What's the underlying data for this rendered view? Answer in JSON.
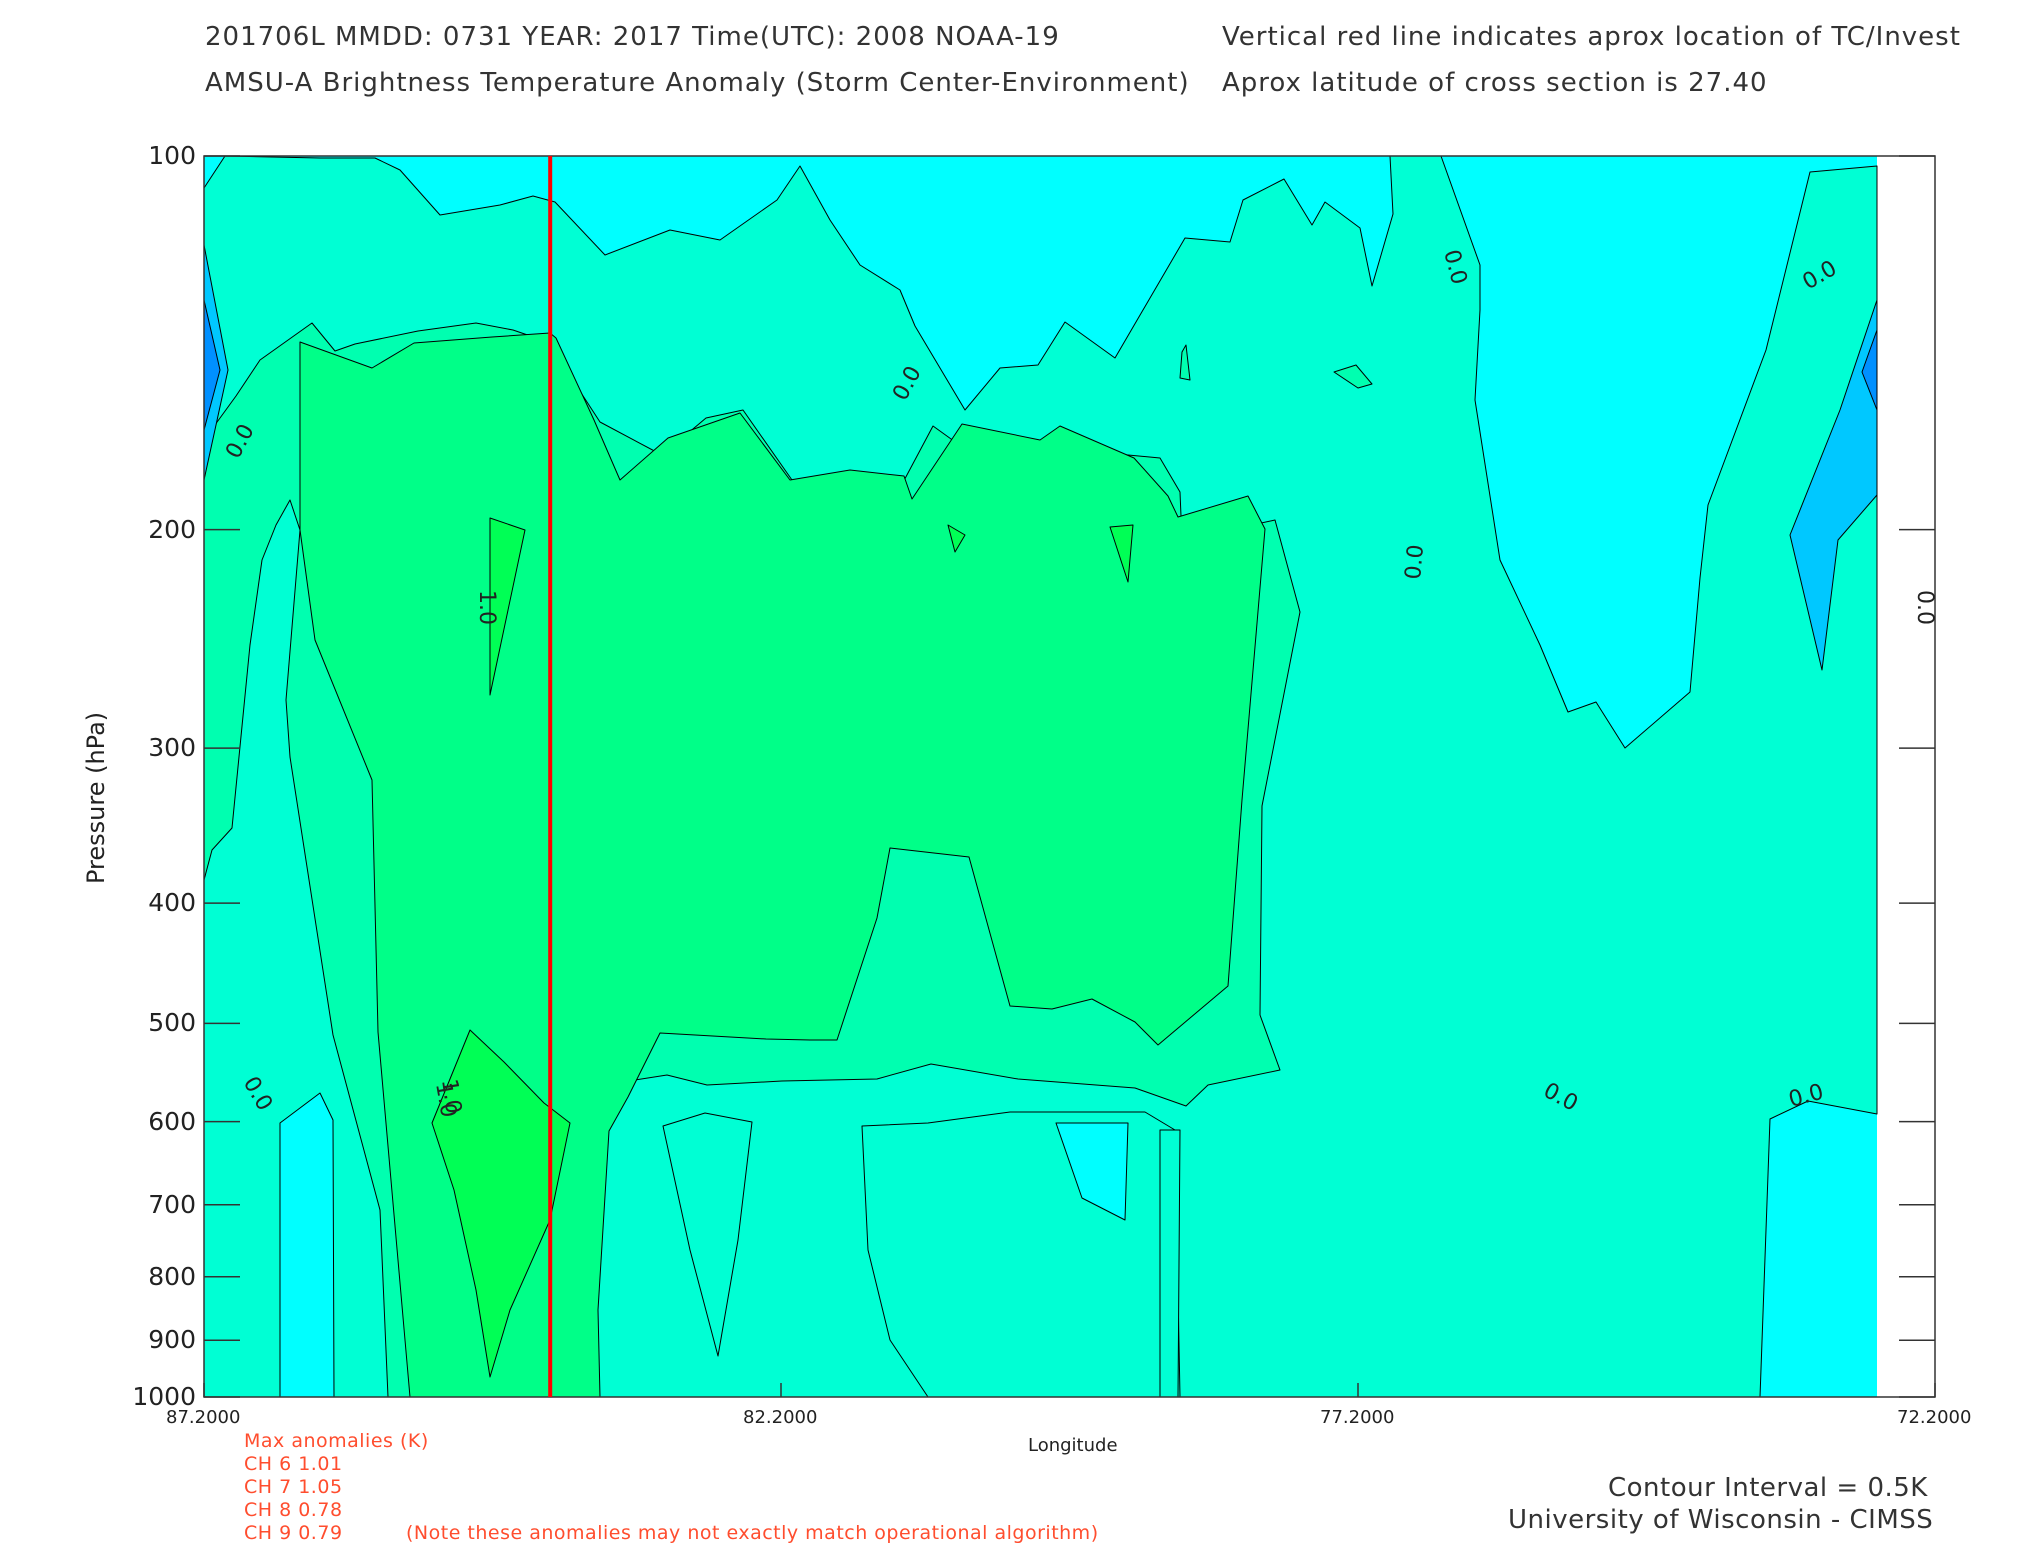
{
  "header": {
    "line1_left": "201706L  MMDD: 0731 YEAR: 2017 Time(UTC): 2008 NOAA-19",
    "line2_left": "AMSU-A Brightness Temperature Anomaly (Storm Center-Environment)",
    "line1_right": "Vertical red line indicates aprox location of TC/Invest",
    "line2_right": "Aprox latitude of cross section is 27.40"
  },
  "anomalies": {
    "title": "Max anomalies (K)",
    "rows": [
      "CH 6  1.01",
      "CH 7  1.05",
      "CH 8  0.78",
      "CH 9  0.79"
    ],
    "note": "(Note these anomalies may not exactly match operational algorithm)"
  },
  "footer": {
    "contour_interval": "Contour Interval = 0.5K",
    "credit": "University of Wisconsin - CIMSS"
  },
  "colors": {
    "cyan": "#00ffff",
    "light_teal": "#00ffd4",
    "aqua_green": "#00ffb0",
    "green": "#00ff88",
    "bright_green": "#00ff55",
    "blue_1": "#00c8ff",
    "blue_2": "#0090ff",
    "red_line": "#ff0000",
    "annotation": "#ff4d2e"
  },
  "chart_data": {
    "type": "heatmap",
    "subtype": "contour cross-section",
    "xlabel": "Longitude",
    "ylabel": "Pressure (hPa)",
    "x_reversed": true,
    "xlim": [
      87.2,
      72.2
    ],
    "x_ticks": [
      "87.2000",
      "82.2000",
      "77.2000",
      "72.2000"
    ],
    "y_scale": "log",
    "ylim": [
      1000,
      100
    ],
    "y_ticks": [
      "100",
      "200",
      "300",
      "400",
      "500",
      "600",
      "700",
      "800",
      "900",
      "1000"
    ],
    "contour_interval_K": 0.5,
    "tc_longitude": 84.2,
    "contour_labels": [
      "0.0",
      "0.0",
      "0.0",
      "0.0",
      "0.0",
      "0.0",
      "0.0",
      "0.0",
      "0.0",
      "1.0",
      "1.0",
      "1.0"
    ]
  }
}
